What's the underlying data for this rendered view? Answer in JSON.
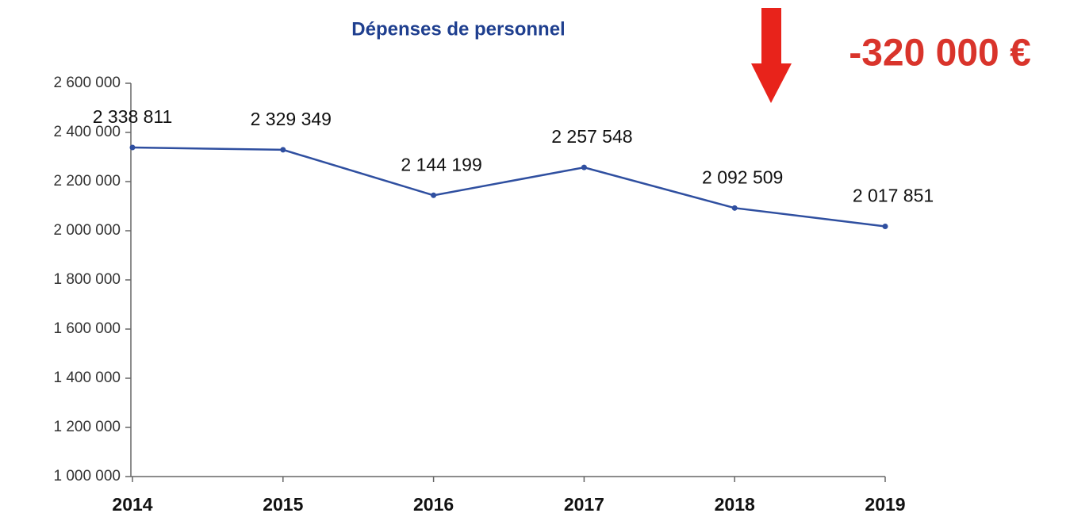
{
  "chart_data": {
    "type": "line",
    "title": "Dépenses de personnel",
    "annotation": "-320 000 €",
    "categories": [
      "2014",
      "2015",
      "2016",
      "2017",
      "2018",
      "2019"
    ],
    "series": [
      {
        "name": "Dépenses de personnel",
        "color": "#2f4fa0",
        "values": [
          2338811,
          2329349,
          2144199,
          2257548,
          2092509,
          2017851
        ],
        "value_labels": [
          "2 338 811",
          "2 329 349",
          "2 144 199",
          "2 257 548",
          "2 092 509",
          "2 017 851"
        ]
      }
    ],
    "ylim": [
      1000000,
      2600000
    ],
    "yticks": [
      {
        "value": 1000000,
        "label": "1 000 000"
      },
      {
        "value": 1200000,
        "label": "1 200 000"
      },
      {
        "value": 1400000,
        "label": "1 400 000"
      },
      {
        "value": 1600000,
        "label": "1 600 000"
      },
      {
        "value": 1800000,
        "label": "1 800 000"
      },
      {
        "value": 2000000,
        "label": "2 000 000"
      },
      {
        "value": 2200000,
        "label": "2 200 000"
      },
      {
        "value": 2400000,
        "label": "2 400 000"
      },
      {
        "value": 2600000,
        "label": "2 600 000"
      }
    ],
    "grid": false
  }
}
